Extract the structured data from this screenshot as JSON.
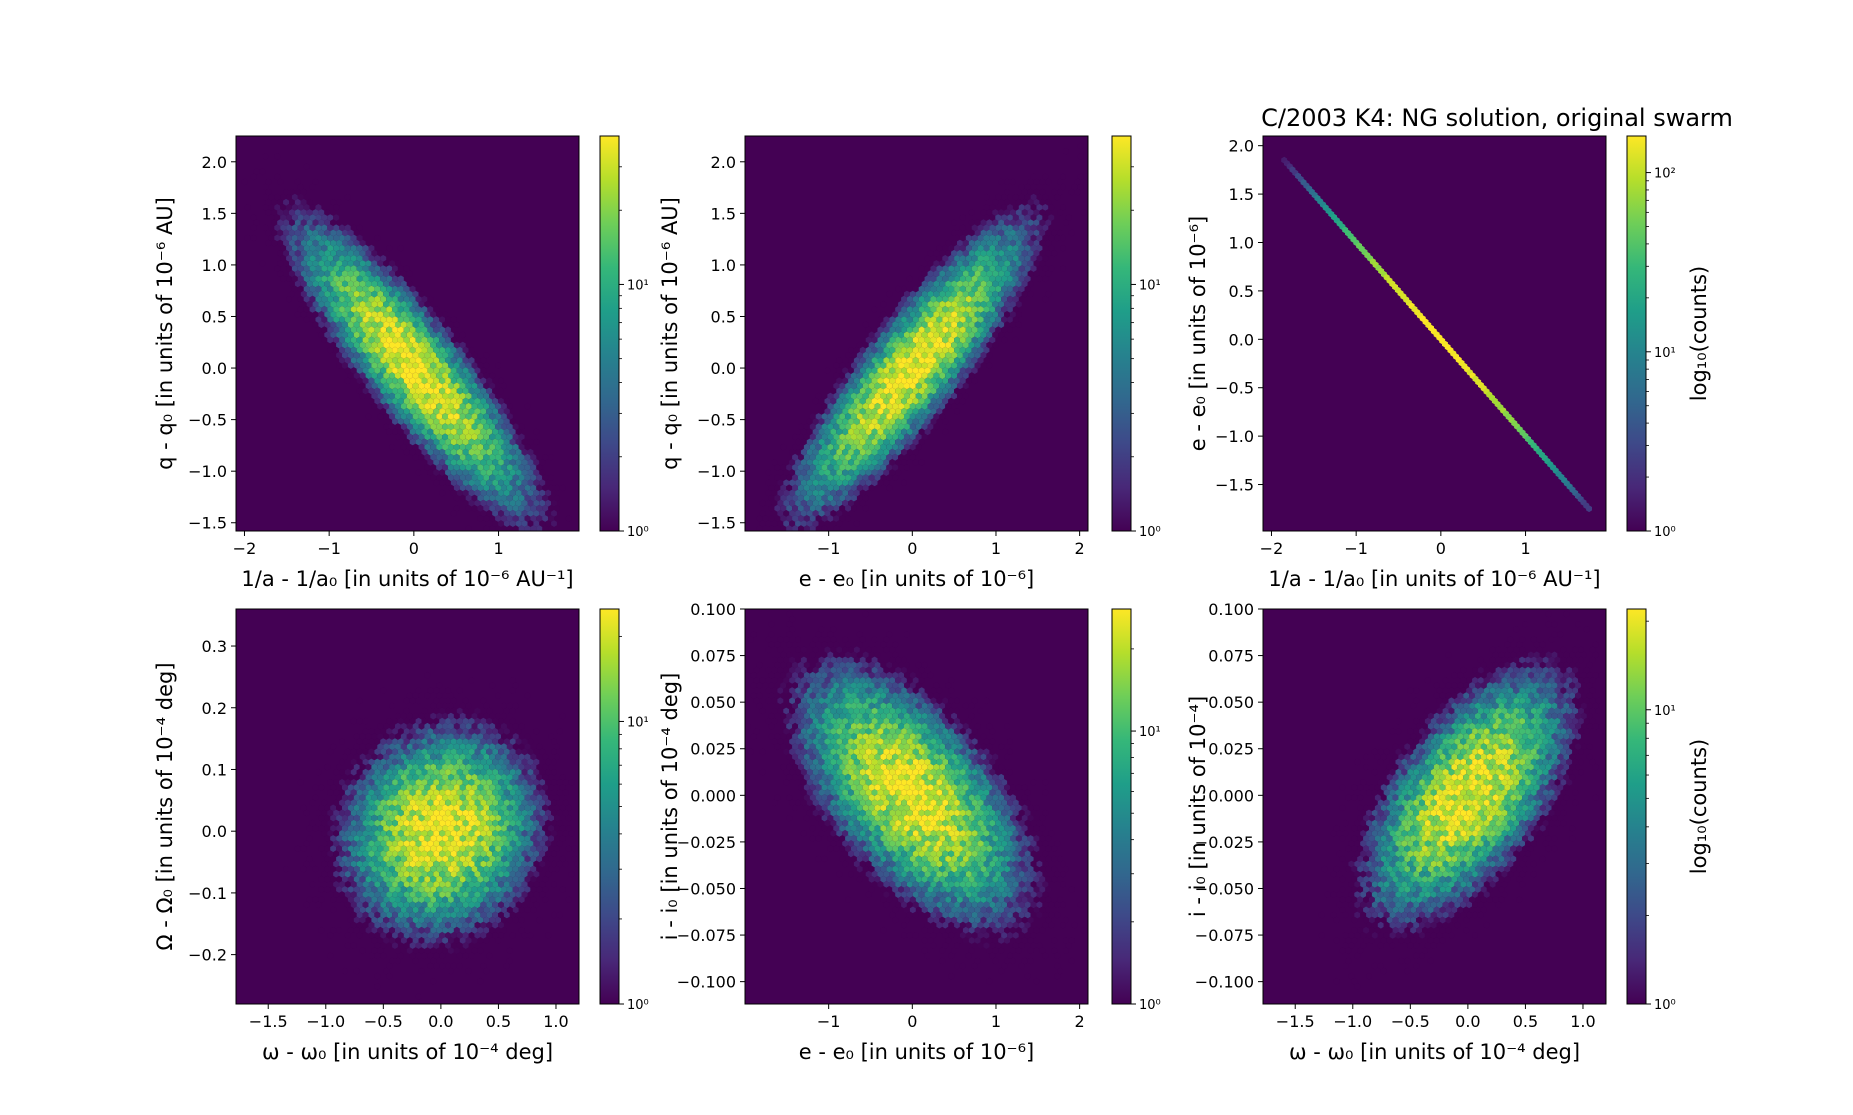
{
  "figure": {
    "title": "C/2003 K4:  NG solution, original swarm",
    "colormap": [
      "#440154",
      "#482878",
      "#3e4989",
      "#31688e",
      "#26828e",
      "#1f9e89",
      "#35b779",
      "#6ece58",
      "#b5de2b",
      "#fde725"
    ],
    "background_color": "#440154"
  },
  "chart_data": [
    {
      "type": "heatmap",
      "subtype": "hexbin-log-counts",
      "xlabel": "1/a - 1/a₀ [in units of 10⁻⁶ AU⁻¹]",
      "ylabel": "q - q₀ [in units of 10⁻⁶ AU]",
      "xlim": [
        -2.1,
        1.95
      ],
      "ylim": [
        -1.58,
        2.25
      ],
      "xticks": [
        -2,
        -1,
        0,
        1
      ],
      "xtick_labels": [
        "−2",
        "−1",
        "0",
        "1"
      ],
      "yticks": [
        -1.5,
        -1.0,
        -0.5,
        0.0,
        0.5,
        1.0,
        1.5,
        2.0
      ],
      "ytick_labels": [
        "−1.5",
        "−1.0",
        "−0.5",
        "0.0",
        "0.5",
        "1.0",
        "1.5",
        "2.0"
      ],
      "distribution": {
        "center": [
          0.0,
          0.0
        ],
        "std": [
          0.6,
          0.6
        ],
        "correlation": -0.88,
        "peak_count": 40
      },
      "colorbar": {
        "scale": "log",
        "range": [
          1,
          40
        ],
        "ticks": [
          1,
          10
        ],
        "tick_labels": [
          "10⁰",
          "10¹"
        ],
        "label": ""
      }
    },
    {
      "type": "heatmap",
      "subtype": "hexbin-log-counts",
      "xlabel": "e - e₀ [in units of 10⁻⁶]",
      "ylabel": "q - q₀ [in units of 10⁻⁶ AU]",
      "xlim": [
        -2.0,
        2.1
      ],
      "ylim": [
        -1.58,
        2.25
      ],
      "xticks": [
        -1,
        0,
        1,
        2
      ],
      "xtick_labels": [
        "−1",
        "0",
        "1",
        "2"
      ],
      "yticks": [
        -1.5,
        -1.0,
        -0.5,
        0.0,
        0.5,
        1.0,
        1.5,
        2.0
      ],
      "ytick_labels": [
        "−1.5",
        "−1.0",
        "−0.5",
        "0.0",
        "0.5",
        "1.0",
        "1.5",
        "2.0"
      ],
      "distribution": {
        "center": [
          0.0,
          0.0
        ],
        "std": [
          0.6,
          0.6
        ],
        "correlation": 0.88,
        "peak_count": 40
      },
      "colorbar": {
        "scale": "log",
        "range": [
          1,
          40
        ],
        "ticks": [
          1,
          10
        ],
        "tick_labels": [
          "10⁰",
          "10¹"
        ],
        "label": ""
      }
    },
    {
      "type": "heatmap",
      "subtype": "hexbin-log-counts",
      "xlabel": "1/a - 1/a₀ [in units of 10⁻⁶ AU⁻¹]",
      "ylabel": "e - e₀ [in units of 10⁻⁶]",
      "xlim": [
        -2.1,
        1.95
      ],
      "ylim": [
        -1.98,
        2.1
      ],
      "xticks": [
        -2,
        -1,
        0,
        1
      ],
      "xtick_labels": [
        "−2",
        "−1",
        "0",
        "1"
      ],
      "yticks": [
        -1.5,
        -1.0,
        -0.5,
        0.0,
        0.5,
        1.0,
        1.5,
        2.0
      ],
      "ytick_labels": [
        "−1.5",
        "−1.0",
        "−0.5",
        "0.0",
        "0.5",
        "1.0",
        "1.5",
        "2.0"
      ],
      "distribution": {
        "center": [
          0.0,
          0.0
        ],
        "std": [
          0.6,
          0.6
        ],
        "correlation": -1.0,
        "line_extent": [
          -1.85,
          1.75
        ],
        "peak_count": 160
      },
      "colorbar": {
        "scale": "log",
        "range": [
          1,
          160
        ],
        "ticks": [
          1,
          10,
          100
        ],
        "tick_labels": [
          "10⁰",
          "10¹",
          "10²"
        ],
        "label": "log₁₀(counts)"
      }
    },
    {
      "type": "heatmap",
      "subtype": "hexbin-log-counts",
      "xlabel": "ω - ω₀ [in units of 10⁻⁴ deg]",
      "ylabel": "Ω - Ω₀ [in units of 10⁻⁴ deg]",
      "xlim": [
        -1.78,
        1.2
      ],
      "ylim": [
        -0.28,
        0.36
      ],
      "xticks": [
        -1.5,
        -1.0,
        -0.5,
        0.0,
        0.5,
        1.0
      ],
      "xtick_labels": [
        "−1.5",
        "−1.0",
        "−0.5",
        "0.0",
        "0.5",
        "1.0"
      ],
      "yticks": [
        -0.2,
        -0.1,
        0.0,
        0.1,
        0.2,
        0.3
      ],
      "ytick_labels": [
        "−0.2",
        "−0.1",
        "0.0",
        "0.1",
        "0.2",
        "0.3"
      ],
      "distribution": {
        "center": [
          0.0,
          0.0
        ],
        "std": [
          0.38,
          0.075
        ],
        "correlation": 0.1,
        "peak_count": 25
      },
      "colorbar": {
        "scale": "log",
        "range": [
          1,
          25
        ],
        "ticks": [
          1,
          10
        ],
        "tick_labels": [
          "10⁰",
          "10¹"
        ],
        "label": ""
      }
    },
    {
      "type": "heatmap",
      "subtype": "hexbin-log-counts",
      "xlabel": "e - e₀ [in units of 10⁻⁶]",
      "ylabel": "i - i₀ [in units of 10⁻⁴ deg]",
      "xlim": [
        -2.0,
        2.1
      ],
      "ylim": [
        -0.112,
        0.1
      ],
      "xticks": [
        -1,
        0,
        1,
        2
      ],
      "xtick_labels": [
        "−1",
        "0",
        "1",
        "2"
      ],
      "yticks": [
        -0.1,
        -0.075,
        -0.05,
        -0.025,
        0.0,
        0.025,
        0.05,
        0.075,
        0.1
      ],
      "ytick_labels": [
        "−0.100",
        "−0.075",
        "−0.050",
        "−0.025",
        "0.000",
        "0.025",
        "0.050",
        "0.075",
        "0.100"
      ],
      "distribution": {
        "center": [
          0.0,
          0.0
        ],
        "std": [
          0.6,
          0.03
        ],
        "correlation": -0.6,
        "peak_count": 28
      },
      "colorbar": {
        "scale": "log",
        "range": [
          1,
          28
        ],
        "ticks": [
          1,
          10
        ],
        "tick_labels": [
          "10⁰",
          "10¹"
        ],
        "label": ""
      }
    },
    {
      "type": "heatmap",
      "subtype": "hexbin-log-counts",
      "xlabel": "ω - ω₀ [in units of 10⁻⁴ deg]",
      "ylabel": "i - i₀ [in units of 10⁻⁴]",
      "xlim": [
        -1.78,
        1.2
      ],
      "ylim": [
        -0.112,
        0.1
      ],
      "xticks": [
        -1.5,
        -1.0,
        -0.5,
        0.0,
        0.5,
        1.0
      ],
      "xtick_labels": [
        "−1.5",
        "−1.0",
        "−0.5",
        "0.0",
        "0.5",
        "1.0"
      ],
      "yticks": [
        -0.1,
        -0.075,
        -0.05,
        -0.025,
        0.0,
        0.025,
        0.05,
        0.075,
        0.1
      ],
      "ytick_labels": [
        "−0.100",
        "−0.075",
        "−0.050",
        "−0.025",
        "0.000",
        "0.025",
        "0.050",
        "0.075",
        "0.100"
      ],
      "distribution": {
        "center": [
          0.0,
          0.0
        ],
        "std": [
          0.4,
          0.03
        ],
        "correlation": 0.6,
        "peak_count": 22
      },
      "colorbar": {
        "scale": "log",
        "range": [
          1,
          22
        ],
        "ticks": [
          1,
          10
        ],
        "tick_labels": [
          "10⁰",
          "10¹"
        ],
        "label": "log₁₀(counts)"
      }
    }
  ]
}
